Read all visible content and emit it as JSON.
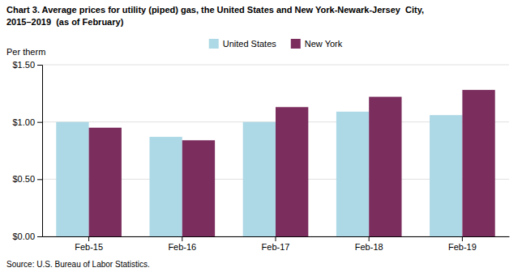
{
  "chart_data": {
    "type": "bar",
    "title": "Chart 3. Average prices for utility (piped) gas, the United States and New York-Newark-Jersey  City,",
    "subtitle": "2015–2019  (as of February)",
    "y_label": "Per therm",
    "annotations": [
      "Source: U.S. Bureau of Labor Statistics."
    ],
    "categories": [
      "Feb-15",
      "Feb-16",
      "Feb-17",
      "Feb-18",
      "Feb-19"
    ],
    "series": [
      {
        "name": "United States",
        "color": "#ADD8E6",
        "values": [
          1.0,
          0.87,
          1.0,
          1.09,
          1.06
        ]
      },
      {
        "name": "New York",
        "color": "#7B2D5E",
        "values": [
          0.95,
          0.84,
          1.13,
          1.22,
          1.28
        ]
      }
    ],
    "ylim": [
      0,
      1.5
    ],
    "yticks": [
      {
        "value": 0.0,
        "label": "$0.00"
      },
      {
        "value": 0.5,
        "label": "$0.50"
      },
      {
        "value": 1.0,
        "label": "$1.00"
      },
      {
        "value": 1.5,
        "label": "$1.50"
      }
    ],
    "grid": true,
    "legend": "top"
  }
}
